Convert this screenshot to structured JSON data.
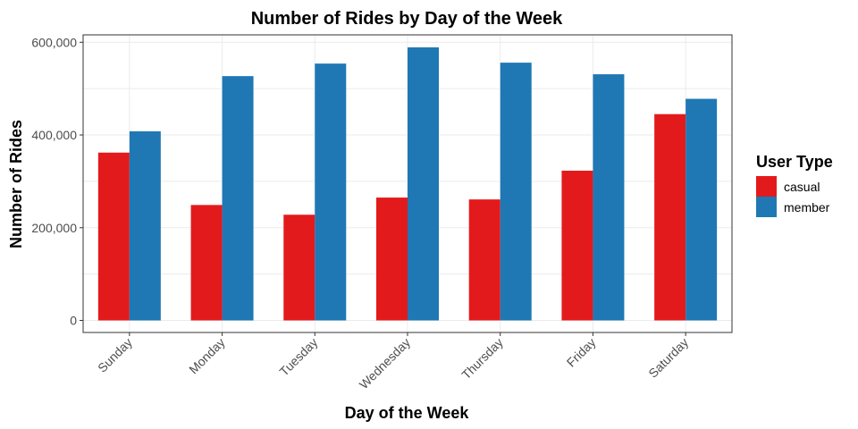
{
  "chart_data": {
    "type": "bar",
    "title": "Number of Rides by Day of the Week",
    "xlabel": "Day of the Week",
    "ylabel": "Number of Rides",
    "categories": [
      "Sunday",
      "Monday",
      "Tuesday",
      "Wednesday",
      "Thursday",
      "Friday",
      "Saturday"
    ],
    "series": [
      {
        "name": "casual",
        "color": "#E31A1C",
        "values": [
          362000,
          249000,
          228000,
          265000,
          261000,
          323000,
          445000
        ]
      },
      {
        "name": "member",
        "color": "#1F78B4",
        "values": [
          408000,
          527000,
          554000,
          589000,
          556000,
          531000,
          478000
        ]
      }
    ],
    "ylim": [
      -26000,
      616000
    ],
    "yticks": [
      0,
      200000,
      400000,
      600000
    ],
    "ytick_labels": [
      "0",
      "200,000",
      "400,000",
      "600,000"
    ],
    "grid": true,
    "legend": {
      "title": "User Type",
      "position": "right"
    }
  }
}
